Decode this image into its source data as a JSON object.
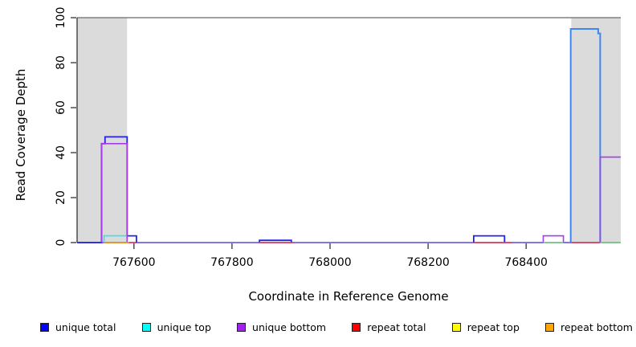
{
  "chart_data": {
    "type": "line",
    "subtype": "step-coverage-plot",
    "title": "",
    "xlabel": "Coordinate in Reference Genome",
    "ylabel": "Read Coverage Depth",
    "xlim": [
      767484,
      768593
    ],
    "ylim": [
      0,
      100
    ],
    "grid": "off",
    "x_ticks": [
      767600,
      767800,
      768000,
      768200,
      768400
    ],
    "y_ticks": [
      0,
      20,
      40,
      60,
      80,
      100
    ],
    "reference_line_y": 100,
    "shaded_regions": [
      {
        "name": "left-repeat-region",
        "x0": 767484,
        "x1": 767586
      },
      {
        "name": "right-repeat-region",
        "x0": 768492,
        "x1": 768593
      }
    ],
    "series": [
      {
        "name": "overlapped-baseline",
        "color": "#6A5AEE",
        "width": 1.6,
        "segments": [
          [
            [
              767484,
              0
            ],
            [
              768593,
              0
            ]
          ]
        ]
      },
      {
        "name": "unique total",
        "color": "#2323EB",
        "width": 1.8,
        "segments": [
          [
            [
              767484,
              0
            ],
            [
              767534,
              0
            ],
            [
              767534,
              44
            ],
            [
              767541,
              44
            ],
            [
              767541,
              47
            ],
            [
              767586,
              47
            ],
            [
              767586,
              3
            ],
            [
              767605,
              3
            ],
            [
              767605,
              0
            ]
          ],
          [
            [
              767856,
              0
            ],
            [
              767856,
              1
            ],
            [
              767921,
              1
            ],
            [
              767921,
              0
            ]
          ],
          [
            [
              768293,
              0
            ],
            [
              768293,
              3
            ],
            [
              768356,
              3
            ],
            [
              768356,
              0
            ]
          ]
        ]
      },
      {
        "name": "unique total + unique top (right peak overlap)",
        "color": "#3F86F0",
        "width": 2,
        "segments": [
          [
            [
              768491,
              0
            ],
            [
              768491,
              95
            ],
            [
              768547,
              95
            ],
            [
              768547,
              93
            ],
            [
              768551,
              93
            ],
            [
              768551,
              0
            ]
          ]
        ]
      },
      {
        "name": "unique top",
        "color": "#35E3E8",
        "width": 1.6,
        "segments": [
          [
            [
              767539,
              0
            ],
            [
              767539,
              3
            ],
            [
              767586,
              3
            ],
            [
              767586,
              0
            ]
          ]
        ]
      },
      {
        "name": "unique bottom",
        "color": "#A43BEF",
        "width": 1.6,
        "segments": [
          [
            [
              767534,
              0
            ],
            [
              767534,
              44
            ],
            [
              767586,
              44
            ],
            [
              767586,
              0
            ]
          ],
          [
            [
              768435,
              0
            ],
            [
              768435,
              3
            ],
            [
              768476,
              3
            ],
            [
              768476,
              0
            ]
          ],
          [
            [
              768551,
              0
            ],
            [
              768551,
              38
            ],
            [
              768593,
              38
            ]
          ]
        ]
      },
      {
        "name": "repeat total",
        "color": "#F03A4A",
        "width": 1.4,
        "segments": [
          [
            [
              767588,
              0
            ],
            [
              767605,
              0
            ]
          ],
          [
            [
              767855,
              0
            ],
            [
              767925,
              0
            ]
          ],
          [
            [
              768293,
              0
            ],
            [
              768372,
              0
            ]
          ],
          [
            [
              768492,
              0
            ],
            [
              768551,
              0
            ]
          ]
        ]
      },
      {
        "name": "repeat top over unique top (green blend)",
        "color": "#7CD87C",
        "width": 1.5,
        "segments": [
          [
            [
              768435,
              0
            ],
            [
              768476,
              0
            ]
          ],
          [
            [
              768551,
              0
            ],
            [
              768593,
              0
            ]
          ]
        ]
      },
      {
        "name": "repeat bottom",
        "color": "#FF9A00",
        "width": 1.6,
        "segments": [
          [
            [
              767539,
              0
            ],
            [
              767590,
              0
            ]
          ]
        ]
      }
    ],
    "legend": {
      "position": "bottom",
      "entries": [
        {
          "label": "unique total",
          "color": "#0000FF"
        },
        {
          "label": "unique top",
          "color": "#00FFFF"
        },
        {
          "label": "unique bottom",
          "color": "#A020F0"
        },
        {
          "label": "repeat total",
          "color": "#FF0000"
        },
        {
          "label": "repeat top",
          "color": "#FFFF00"
        },
        {
          "label": "repeat bottom",
          "color": "#FFA500"
        }
      ]
    },
    "style": {
      "shade_fill": "#DBDBDB",
      "reference_line_color": "#808080",
      "axis_color": "#333333",
      "tick_label_color": "#000000",
      "tick_font_px": 14
    }
  }
}
